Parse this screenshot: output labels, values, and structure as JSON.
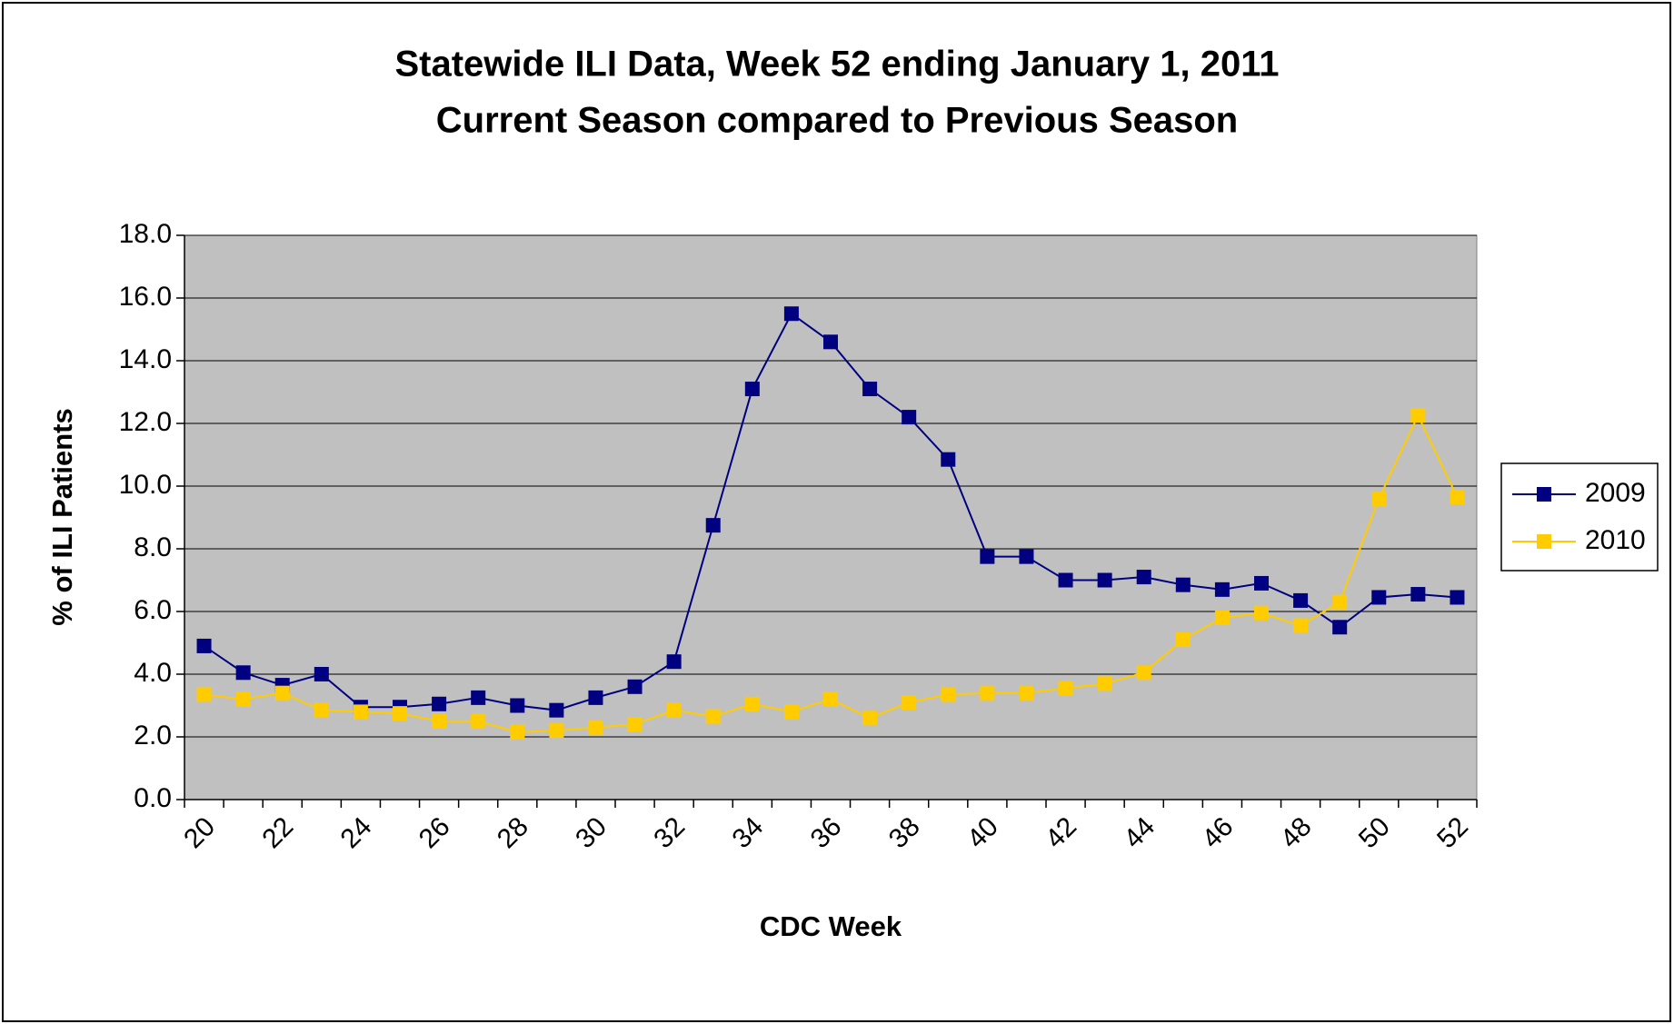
{
  "chart_data": {
    "type": "line",
    "title": "Statewide ILI Data, Week 52 ending January 1, 2011",
    "subtitle": "Current Season compared to Previous Season",
    "x_label": "CDC Week",
    "y_label": "% of ILI Patients",
    "categories": [
      "20",
      null,
      "22",
      null,
      "24",
      null,
      "26",
      null,
      "28",
      null,
      "30",
      null,
      "32",
      null,
      "34",
      null,
      "36",
      null,
      "38",
      null,
      "40",
      null,
      "42",
      null,
      "44",
      null,
      "46",
      null,
      "48",
      null,
      "50",
      null,
      "52"
    ],
    "series": [
      {
        "name": "2009",
        "color": "#000080",
        "values": [
          4.9,
          4.05,
          3.65,
          4.0,
          2.95,
          2.95,
          3.05,
          3.25,
          3.0,
          2.85,
          3.25,
          3.6,
          4.4,
          8.75,
          13.1,
          15.5,
          14.6,
          13.1,
          12.2,
          10.85,
          7.75,
          7.75,
          7.0,
          7.0,
          7.1,
          6.85,
          6.7,
          6.9,
          6.35,
          5.5,
          6.45,
          6.55,
          6.45
        ]
      },
      {
        "name": "2010",
        "color": "#FFCC00",
        "values": [
          3.35,
          3.2,
          3.4,
          2.85,
          2.8,
          2.75,
          2.5,
          2.5,
          2.15,
          2.2,
          2.3,
          2.4,
          2.85,
          2.65,
          3.05,
          2.8,
          3.2,
          2.6,
          3.1,
          3.35,
          3.4,
          3.4,
          3.55,
          3.7,
          4.05,
          5.1,
          5.8,
          5.95,
          5.55,
          6.3,
          9.6,
          12.25,
          9.65
        ]
      }
    ],
    "ylim": [
      0,
      18
    ],
    "yticks": [
      {
        "value": 0,
        "label": "0.0"
      },
      {
        "value": 2,
        "label": "2.0"
      },
      {
        "value": 4,
        "label": "4.0"
      },
      {
        "value": 6,
        "label": "6.0"
      },
      {
        "value": 8,
        "label": "8.0"
      },
      {
        "value": 10,
        "label": "10.0"
      },
      {
        "value": 12,
        "label": "12.0"
      },
      {
        "value": 14,
        "label": "14.0"
      },
      {
        "value": 16,
        "label": "16.0"
      },
      {
        "value": 18,
        "label": "18.0"
      }
    ],
    "grid": true,
    "plot_background": "#C0C0C0",
    "legend": "right"
  }
}
